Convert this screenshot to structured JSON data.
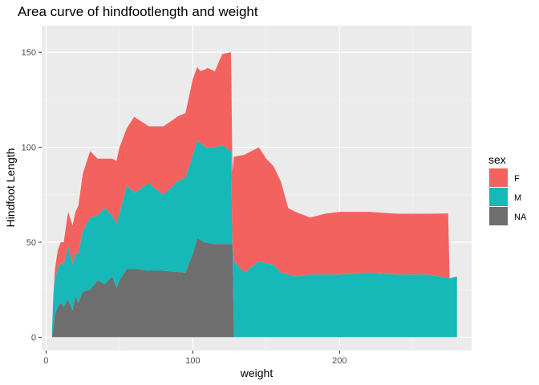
{
  "chart_data": {
    "type": "area",
    "title": "Area curve of hindfootlength and weight",
    "xlabel": "weight",
    "ylabel": "Hindfoot Length",
    "xlim": [
      -3,
      290
    ],
    "ylim": [
      -7,
      164
    ],
    "x_ticks": [
      0,
      100,
      200
    ],
    "y_ticks": [
      0,
      50,
      100,
      150
    ],
    "grid": true,
    "stacked": true,
    "legend": {
      "title": "sex",
      "position": "right"
    },
    "series": [
      {
        "name": "NA",
        "color": "#6e6e6e",
        "x": [
          5,
          6,
          8,
          10,
          12,
          15,
          18,
          20,
          22,
          25,
          30,
          35,
          40,
          45,
          48,
          50,
          55,
          60,
          70,
          80,
          95,
          100,
          103,
          108,
          115,
          125,
          127
        ],
        "y": [
          5,
          12,
          16,
          18,
          16,
          20,
          14,
          22,
          18,
          24,
          25,
          30,
          28,
          32,
          26,
          30,
          36,
          36,
          35,
          35,
          34,
          44,
          52,
          50,
          49,
          49,
          49
        ]
      },
      {
        "name": "M",
        "color": "#17b8b8",
        "x": [
          4,
          5,
          8,
          12,
          15,
          20,
          25,
          30,
          35,
          40,
          45,
          50,
          55,
          60,
          70,
          80,
          90,
          95,
          100,
          110,
          120,
          126,
          127,
          128,
          135,
          145,
          155,
          160,
          170,
          180,
          200,
          220,
          240,
          260,
          275,
          280
        ],
        "y": [
          3,
          18,
          20,
          22,
          28,
          22,
          32,
          38,
          34,
          40,
          32,
          35,
          44,
          40,
          46,
          40,
          48,
          50,
          52,
          50,
          52,
          49,
          0,
          40,
          34,
          40,
          38,
          34,
          32,
          33,
          33,
          34,
          33,
          33,
          31,
          32
        ]
      },
      {
        "name": "F",
        "color": "#f46260",
        "x": [
          5,
          6,
          8,
          12,
          15,
          20,
          25,
          30,
          35,
          40,
          45,
          50,
          55,
          60,
          70,
          80,
          90,
          95,
          100,
          105,
          110,
          115,
          120,
          126,
          127,
          128,
          135,
          145,
          150,
          155,
          160,
          165,
          170,
          180,
          190,
          200,
          220,
          240,
          260,
          274
        ],
        "y": [
          0,
          5,
          10,
          12,
          18,
          22,
          30,
          35,
          30,
          26,
          30,
          35,
          30,
          40,
          30,
          36,
          34,
          34,
          40,
          38,
          42,
          40,
          48,
          52,
          38,
          55,
          62,
          60,
          55,
          52,
          48,
          35,
          34,
          30,
          32,
          33,
          32,
          32,
          32,
          34
        ]
      }
    ]
  }
}
